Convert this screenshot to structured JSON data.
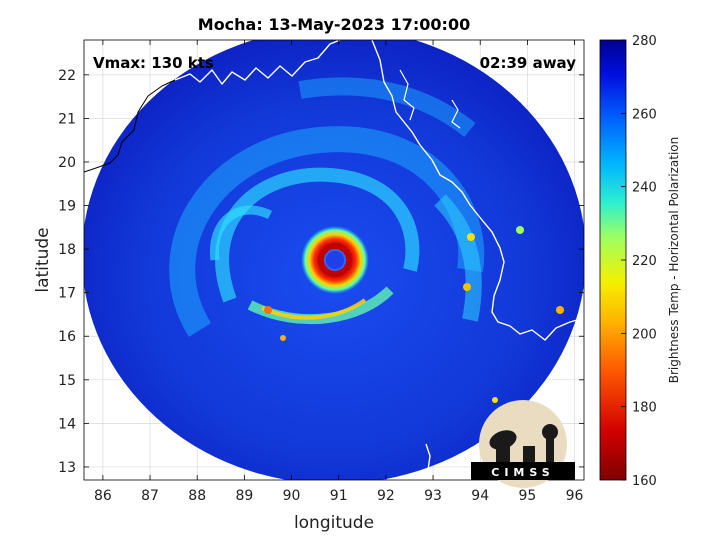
{
  "figure": {
    "title": "Mocha: 13-May-2023 17:00:00",
    "vmax_label": "Vmax: 130 kts",
    "away_label": "02:39 away",
    "logo_text": "CIMSS"
  },
  "axes": {
    "xlabel": "longitude",
    "ylabel": "latitude",
    "xlim": [
      85.6,
      96.2
    ],
    "ylim": [
      12.7,
      22.8
    ],
    "xticks": [
      86,
      87,
      88,
      89,
      90,
      91,
      92,
      93,
      94,
      95,
      96
    ],
    "yticks": [
      13,
      14,
      15,
      16,
      17,
      18,
      19,
      20,
      21,
      22
    ],
    "grid": true
  },
  "colorbar": {
    "label": "Brightness Temp - Horizontal Polarization",
    "range": [
      160,
      280
    ],
    "ticks": [
      160,
      180,
      200,
      220,
      240,
      260,
      280
    ],
    "colormap": "jet"
  },
  "storm": {
    "center_lon": 90.9,
    "center_lat": 17.72,
    "eye_temp_k": 250,
    "eyewall_temp_k": 165
  },
  "colors": {
    "background_deep": "#0a2fd0",
    "rainband": "#1ec6ff",
    "eyewall": "#c00000",
    "coastline": "#ffffff"
  }
}
